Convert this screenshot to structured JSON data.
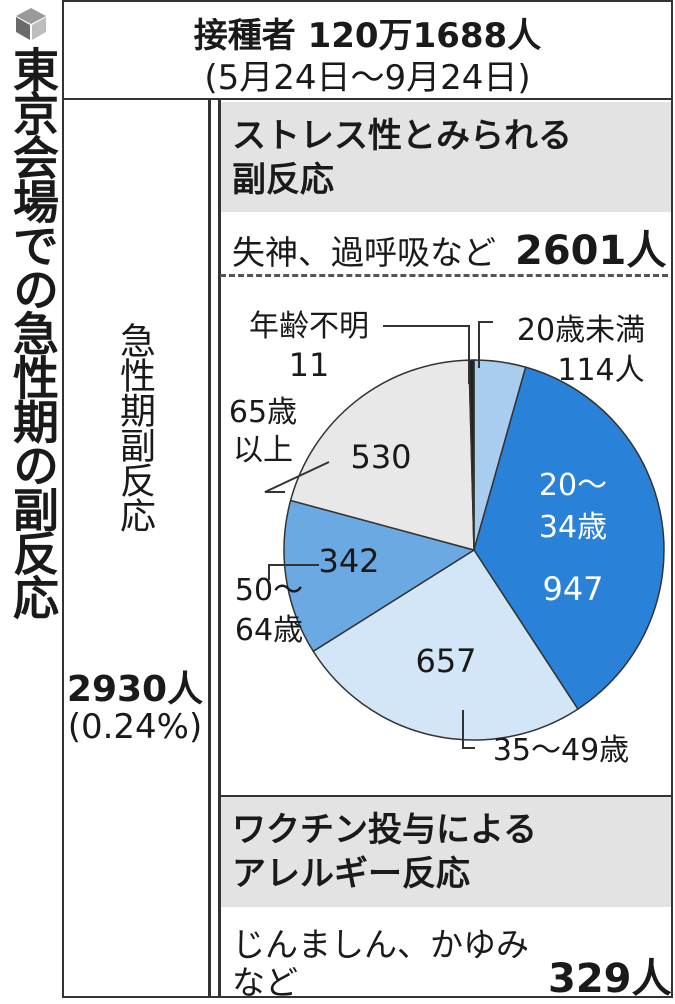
{
  "sidebar": {
    "title": "東京会場での急性期の副反応",
    "logo_icon": "cube-logo-icon"
  },
  "header": {
    "line1": "接種者 120万1688人",
    "line2": "(5月24日～9月24日)"
  },
  "left": {
    "label": "急性期副反応",
    "count": "2930人",
    "percent": "(0.24%)"
  },
  "stress": {
    "heading_line1": "ストレス性とみられる",
    "heading_line2": "副反応",
    "desc": "失神、過呼吸など",
    "count": "2601人"
  },
  "allergy": {
    "heading_line1": "ワクチン投与による",
    "heading_line2": "アレルギー反応",
    "desc_line1": "じんましん、かゆみ",
    "desc_line2": "など",
    "count": "329人"
  },
  "chart_data": {
    "type": "pie",
    "start_angle_deg": 0,
    "direction": "clockwise",
    "slices": [
      {
        "label_lines": [
          "20歳未満"
        ],
        "value": 114,
        "value_text": "114人",
        "color": "#a8cdef"
      },
      {
        "label_lines": [
          "20～",
          "34歳"
        ],
        "value": 947,
        "value_text": "947",
        "color": "#2a82d8"
      },
      {
        "label_lines": [
          "35～49歳"
        ],
        "value": 657,
        "value_text": "657",
        "color": "#d3e6f7"
      },
      {
        "label_lines": [
          "50～",
          "64歳"
        ],
        "value": 342,
        "value_text": "342",
        "color": "#6aa9e2"
      },
      {
        "label_lines": [
          "65歳",
          "以上"
        ],
        "value": 530,
        "value_text": "530",
        "color": "#e8e8e8"
      },
      {
        "label_lines": [
          "年齢不明"
        ],
        "value": 11,
        "value_text": "11",
        "color": "#222222"
      }
    ]
  }
}
